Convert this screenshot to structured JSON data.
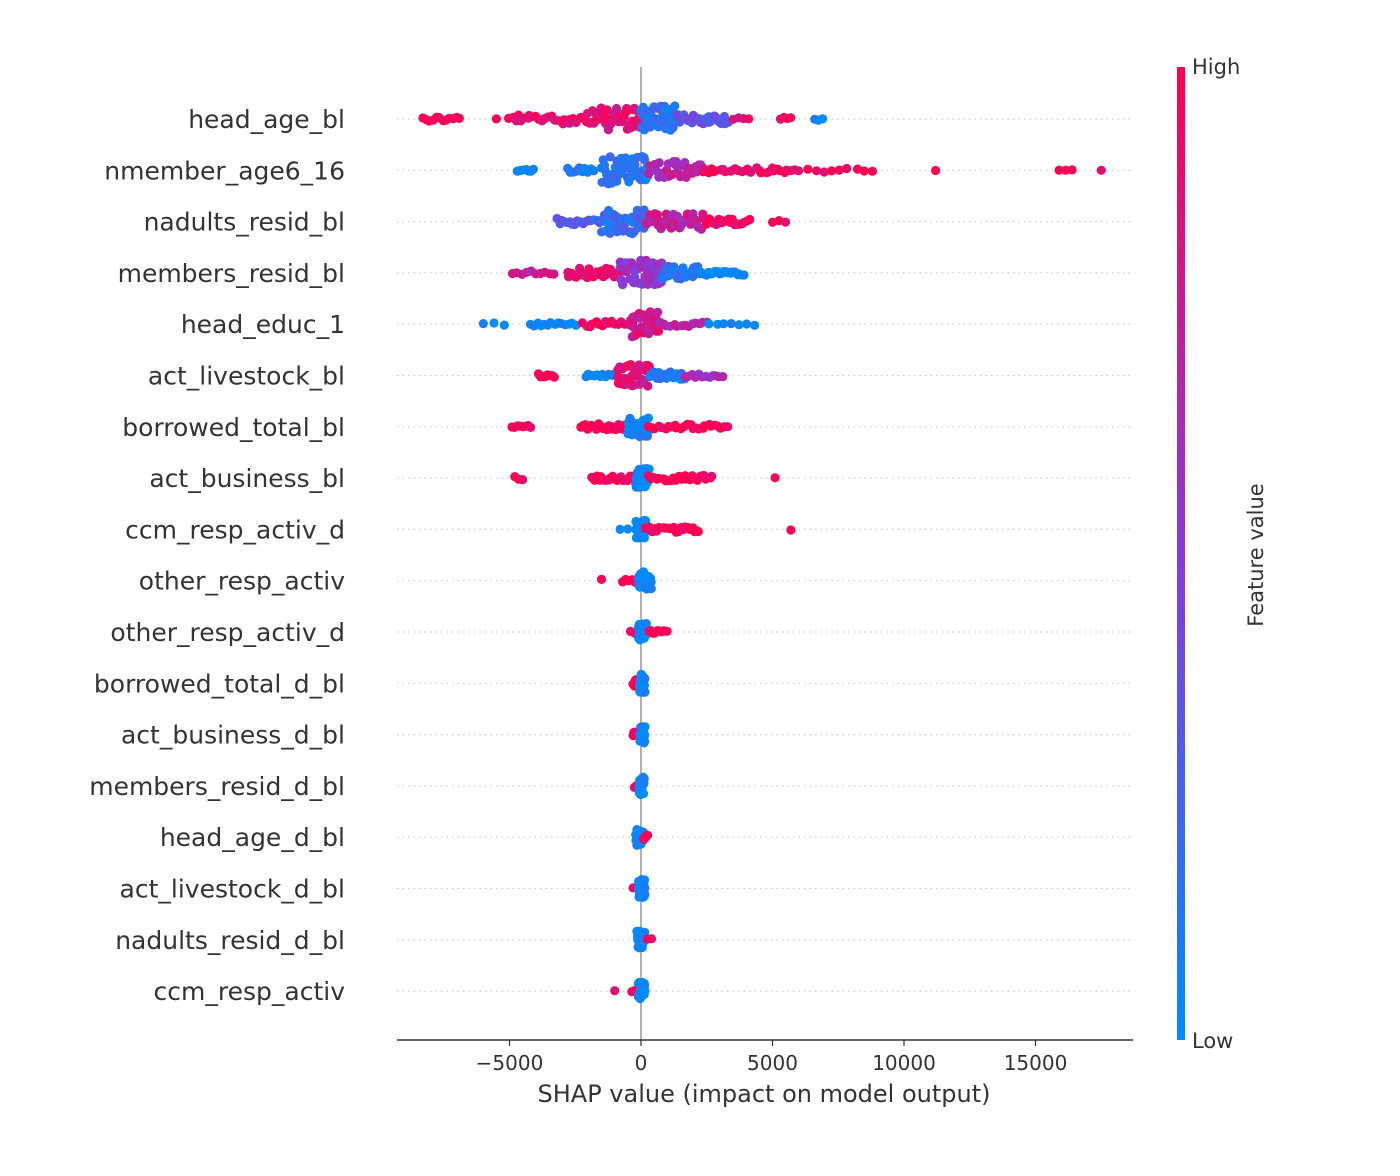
{
  "chart_data": {
    "type": "scatter",
    "subtype": "shap-beeswarm",
    "xlabel": "SHAP value (impact on model output)",
    "xlim": [
      -9500,
      19000
    ],
    "x_ticks": [
      {
        "value": -5000,
        "label": "−5000"
      },
      {
        "value": 0,
        "label": "0"
      },
      {
        "value": 5000,
        "label": "5000"
      },
      {
        "value": 10000,
        "label": "10000"
      },
      {
        "value": 15000,
        "label": "15000"
      }
    ],
    "zero_line": true,
    "colorbar": {
      "title": "Feature value",
      "high_label": "High",
      "low_label": "Low",
      "low_color": "#008bfb",
      "mid_color": "#8a3ad8",
      "high_color": "#ff0052"
    },
    "features": [
      {
        "name": "head_age_bl",
        "clusters": [
          {
            "min": -8300,
            "max": -6900,
            "n": 12,
            "c": 1.0,
            "sp": 0.8
          },
          {
            "min": -5500,
            "max": -5500,
            "n": 1,
            "c": 1.0,
            "sp": 0.3
          },
          {
            "min": -5000,
            "max": -2000,
            "n": 28,
            "c": 0.9,
            "sp": 1.5
          },
          {
            "min": -2000,
            "max": 0,
            "n": 45,
            "c": 0.85,
            "sp": 3.5
          },
          {
            "min": 0,
            "max": 1300,
            "n": 45,
            "c": 0.15,
            "sp": 4.2
          },
          {
            "min": 1300,
            "max": 3300,
            "n": 30,
            "c": 0.35,
            "sp": 1.6
          },
          {
            "min": 3500,
            "max": 4100,
            "n": 4,
            "c": 0.95,
            "sp": 0.5
          },
          {
            "min": 5300,
            "max": 5700,
            "n": 4,
            "c": 1.0,
            "sp": 0.5
          },
          {
            "min": 6600,
            "max": 6900,
            "n": 3,
            "c": 0.0,
            "sp": 0.5
          }
        ]
      },
      {
        "name": "nmember_age6_16",
        "clusters": [
          {
            "min": -4700,
            "max": -4100,
            "n": 8,
            "c": 0.0,
            "sp": 0.4
          },
          {
            "min": -2800,
            "max": -1800,
            "n": 10,
            "c": 0.1,
            "sp": 0.8
          },
          {
            "min": -1500,
            "max": 300,
            "n": 50,
            "c": 0.12,
            "sp": 4.3
          },
          {
            "min": 300,
            "max": 2300,
            "n": 40,
            "c": 0.7,
            "sp": 2.8
          },
          {
            "min": 2300,
            "max": 5800,
            "n": 30,
            "c": 0.95,
            "sp": 0.8
          },
          {
            "min": 6000,
            "max": 8800,
            "n": 10,
            "c": 1.0,
            "sp": 0.6
          },
          {
            "min": 11200,
            "max": 11200,
            "n": 1,
            "c": 1.0,
            "sp": 0.2
          },
          {
            "min": 15900,
            "max": 16400,
            "n": 3,
            "c": 1.0,
            "sp": 0.2
          },
          {
            "min": 17500,
            "max": 17500,
            "n": 1,
            "c": 1.0,
            "sp": 0.2
          }
        ]
      },
      {
        "name": "nadults_resid_bl",
        "clusters": [
          {
            "min": -3200,
            "max": -1500,
            "n": 18,
            "c": 0.3,
            "sp": 1.0
          },
          {
            "min": -1500,
            "max": 200,
            "n": 50,
            "c": 0.2,
            "sp": 4.0
          },
          {
            "min": 200,
            "max": 2500,
            "n": 40,
            "c": 0.75,
            "sp": 2.5
          },
          {
            "min": 2500,
            "max": 4100,
            "n": 22,
            "c": 0.95,
            "sp": 1.0
          },
          {
            "min": 5000,
            "max": 5500,
            "n": 3,
            "c": 1.0,
            "sp": 0.3
          }
        ]
      },
      {
        "name": "members_resid_bl",
        "clusters": [
          {
            "min": -4900,
            "max": -3300,
            "n": 10,
            "c": 0.75,
            "sp": 0.6
          },
          {
            "min": -2800,
            "max": -800,
            "n": 30,
            "c": 0.9,
            "sp": 1.5
          },
          {
            "min": -800,
            "max": 800,
            "n": 50,
            "c": 0.55,
            "sp": 4.0
          },
          {
            "min": 800,
            "max": 2200,
            "n": 30,
            "c": 0.15,
            "sp": 2.0
          },
          {
            "min": 2200,
            "max": 3900,
            "n": 22,
            "c": 0.0,
            "sp": 0.7
          }
        ]
      },
      {
        "name": "head_educ_1",
        "clusters": [
          {
            "min": -6000,
            "max": -5200,
            "n": 3,
            "c": 0.0,
            "sp": 0.4
          },
          {
            "min": -4200,
            "max": -2500,
            "n": 14,
            "c": 0.0,
            "sp": 0.6
          },
          {
            "min": -2200,
            "max": -400,
            "n": 16,
            "c": 0.95,
            "sp": 0.9
          },
          {
            "min": -400,
            "max": 700,
            "n": 45,
            "c": 0.8,
            "sp": 4.0
          },
          {
            "min": 700,
            "max": 2500,
            "n": 14,
            "c": 0.7,
            "sp": 0.7
          },
          {
            "min": 2600,
            "max": 4300,
            "n": 7,
            "c": 0.0,
            "sp": 0.4
          }
        ]
      },
      {
        "name": "act_livestock_bl",
        "clusters": [
          {
            "min": -3900,
            "max": -3300,
            "n": 8,
            "c": 1.0,
            "sp": 0.6
          },
          {
            "min": -2100,
            "max": -900,
            "n": 12,
            "c": 0.0,
            "sp": 0.4
          },
          {
            "min": -900,
            "max": 300,
            "n": 40,
            "c": 0.85,
            "sp": 3.5
          },
          {
            "min": 300,
            "max": 1700,
            "n": 20,
            "c": 0.1,
            "sp": 1.2
          },
          {
            "min": 1700,
            "max": 3100,
            "n": 12,
            "c": 0.6,
            "sp": 0.6
          }
        ]
      },
      {
        "name": "borrowed_total_bl",
        "clusters": [
          {
            "min": -4900,
            "max": -4200,
            "n": 8,
            "c": 1.0,
            "sp": 0.5
          },
          {
            "min": -2300,
            "max": -500,
            "n": 30,
            "c": 1.0,
            "sp": 0.9
          },
          {
            "min": -500,
            "max": 300,
            "n": 38,
            "c": 0.05,
            "sp": 3.2
          },
          {
            "min": 300,
            "max": 3300,
            "n": 26,
            "c": 1.0,
            "sp": 0.8
          }
        ]
      },
      {
        "name": "act_business_bl",
        "clusters": [
          {
            "min": -4800,
            "max": -4500,
            "n": 3,
            "c": 1.0,
            "sp": 0.5
          },
          {
            "min": -1900,
            "max": -200,
            "n": 22,
            "c": 1.0,
            "sp": 0.8
          },
          {
            "min": -200,
            "max": 300,
            "n": 40,
            "c": 0.0,
            "sp": 3.0
          },
          {
            "min": 300,
            "max": 2700,
            "n": 24,
            "c": 1.0,
            "sp": 0.9
          },
          {
            "min": 5100,
            "max": 5100,
            "n": 1,
            "c": 1.0,
            "sp": 0.2
          }
        ]
      },
      {
        "name": "ccm_resp_activ_d",
        "clusters": [
          {
            "min": -800,
            "max": -200,
            "n": 3,
            "c": 0.0,
            "sp": 0.2
          },
          {
            "min": -200,
            "max": 200,
            "n": 32,
            "c": 0.0,
            "sp": 3.0
          },
          {
            "min": 200,
            "max": 2200,
            "n": 24,
            "c": 1.0,
            "sp": 0.9
          },
          {
            "min": 5700,
            "max": 5700,
            "n": 1,
            "c": 1.0,
            "sp": 0.2
          }
        ]
      },
      {
        "name": "other_resp_activ",
        "clusters": [
          {
            "min": -1500,
            "max": -1500,
            "n": 1,
            "c": 1.0,
            "sp": 0.6
          },
          {
            "min": -700,
            "max": -100,
            "n": 6,
            "c": 1.0,
            "sp": 0.5
          },
          {
            "min": -100,
            "max": 400,
            "n": 32,
            "c": 0.0,
            "sp": 2.8
          }
        ]
      },
      {
        "name": "other_resp_activ_d",
        "clusters": [
          {
            "min": -400,
            "max": -100,
            "n": 3,
            "c": 1.0,
            "sp": 0.3
          },
          {
            "min": -100,
            "max": 200,
            "n": 32,
            "c": 0.0,
            "sp": 2.8
          },
          {
            "min": 300,
            "max": 1000,
            "n": 10,
            "c": 1.0,
            "sp": 0.5
          }
        ]
      },
      {
        "name": "borrowed_total_d_bl",
        "clusters": [
          {
            "min": -300,
            "max": -50,
            "n": 10,
            "c": 1.0,
            "sp": 1.8
          },
          {
            "min": -50,
            "max": 150,
            "n": 28,
            "c": 0.0,
            "sp": 2.8
          }
        ]
      },
      {
        "name": "act_business_d_bl",
        "clusters": [
          {
            "min": -300,
            "max": -50,
            "n": 10,
            "c": 1.0,
            "sp": 1.0
          },
          {
            "min": -50,
            "max": 150,
            "n": 28,
            "c": 0.0,
            "sp": 2.6
          }
        ]
      },
      {
        "name": "members_resid_d_bl",
        "clusters": [
          {
            "min": -250,
            "max": -80,
            "n": 3,
            "c": 1.0,
            "sp": 0.5
          },
          {
            "min": -80,
            "max": 120,
            "n": 32,
            "c": 0.0,
            "sp": 2.8
          }
        ]
      },
      {
        "name": "head_age_d_bl",
        "clusters": [
          {
            "min": -200,
            "max": 100,
            "n": 32,
            "c": 0.0,
            "sp": 2.8
          },
          {
            "min": 100,
            "max": 250,
            "n": 4,
            "c": 1.0,
            "sp": 0.8
          }
        ]
      },
      {
        "name": "act_livestock_d_bl",
        "clusters": [
          {
            "min": -300,
            "max": -100,
            "n": 3,
            "c": 1.0,
            "sp": 0.4
          },
          {
            "min": -100,
            "max": 150,
            "n": 32,
            "c": 0.0,
            "sp": 2.8
          }
        ]
      },
      {
        "name": "nadults_resid_d_bl",
        "clusters": [
          {
            "min": -150,
            "max": 150,
            "n": 32,
            "c": 0.0,
            "sp": 2.8
          },
          {
            "min": 250,
            "max": 400,
            "n": 2,
            "c": 1.0,
            "sp": 0.4
          }
        ]
      },
      {
        "name": "ccm_resp_activ",
        "clusters": [
          {
            "min": -1000,
            "max": -1000,
            "n": 1,
            "c": 1.0,
            "sp": 0.3
          },
          {
            "min": -350,
            "max": -150,
            "n": 3,
            "c": 1.0,
            "sp": 0.3
          },
          {
            "min": -100,
            "max": 150,
            "n": 32,
            "c": 0.0,
            "sp": 2.8
          }
        ]
      }
    ]
  }
}
